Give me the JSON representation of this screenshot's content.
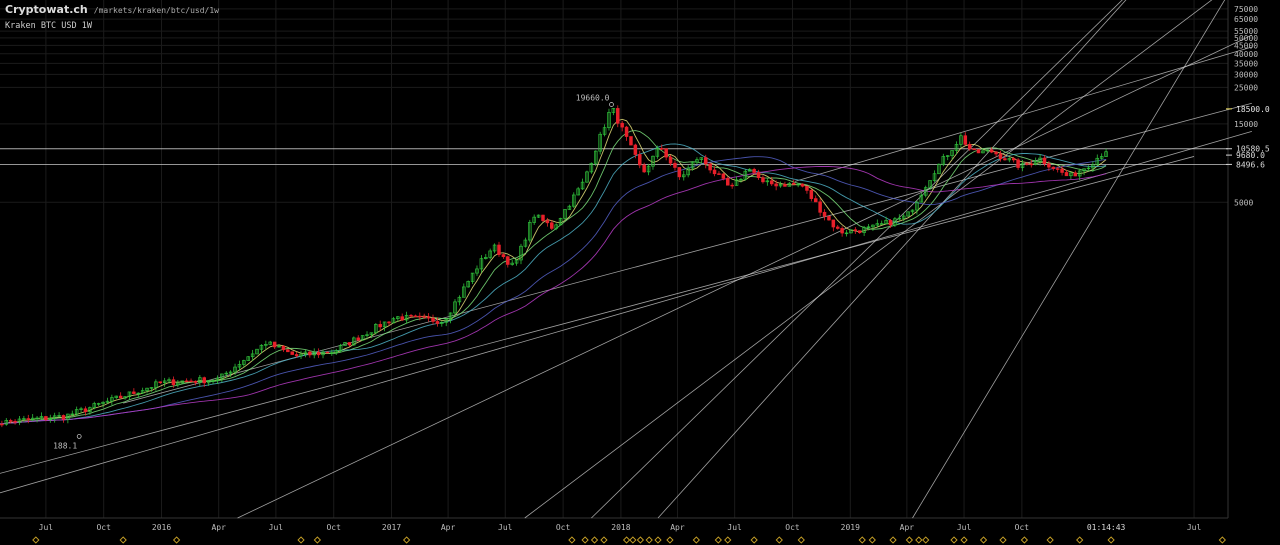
{
  "header": {
    "site": "Cryptowat.ch",
    "path": "/markets/kraken/btc/usd/1w",
    "symbol": "Kraken BTC USD 1W"
  },
  "colors": {
    "background": "#000000",
    "grid": "#1b1b1b",
    "up": "#2fbf3a",
    "down": "#e8202a",
    "trendline": "#d6d6d6",
    "axis_text": "#bdbdbd",
    "highlight_price": "#f0e060",
    "marker": "#c9a227"
  },
  "chart_data": {
    "type": "candlestick",
    "title": "Kraken BTC USD 1W",
    "y_scale": "log",
    "x_tick_labels": [
      "Jul",
      "Oct",
      "2016",
      "Apr",
      "Jul",
      "Oct",
      "2017",
      "Apr",
      "Jul",
      "Oct",
      "2018",
      "Apr",
      "Jul",
      "Oct",
      "2019",
      "Apr",
      "Jul",
      "Oct",
      "Jul"
    ],
    "x_tick_dates": [
      "2015-07-01",
      "2015-10-01",
      "2016-01-01",
      "2016-04-01",
      "2016-07-01",
      "2016-10-01",
      "2017-01-01",
      "2017-04-01",
      "2017-07-01",
      "2017-10-01",
      "2018-01-01",
      "2018-04-01",
      "2018-07-01",
      "2018-10-01",
      "2019-01-01",
      "2019-04-01",
      "2019-07-01",
      "2019-10-01",
      "2020-07-01"
    ],
    "y_tick_labels": [
      75000,
      65000,
      55000,
      50000,
      45000,
      40000,
      35000,
      30000,
      25000,
      15000,
      5000
    ],
    "price_labels": [
      {
        "value": 18500.0,
        "text": "18500.0",
        "highlight": true
      },
      {
        "value": 10580.5,
        "text": "10580.5"
      },
      {
        "value": 9680.0,
        "text": "9680.0"
      },
      {
        "value": 8496.6,
        "text": "8496.6"
      }
    ],
    "horizontal_lines": [
      10580.5,
      8496.6
    ],
    "annotations": [
      {
        "date": "2017-12-17",
        "value": 19660.0,
        "text": "19660.0"
      },
      {
        "date": "2015-08-23",
        "value": 188.1,
        "text": "188.1"
      }
    ],
    "time_label": "01:14:43",
    "anchor_points": [
      {
        "date": "2015-04-01",
        "value": 225
      },
      {
        "date": "2015-08-01",
        "value": 250
      },
      {
        "date": "2015-11-01",
        "value": 330
      },
      {
        "date": "2016-01-01",
        "value": 400
      },
      {
        "date": "2016-04-01",
        "value": 420
      },
      {
        "date": "2016-06-15",
        "value": 700
      },
      {
        "date": "2016-08-01",
        "value": 580
      },
      {
        "date": "2016-10-01",
        "value": 620
      },
      {
        "date": "2016-12-15",
        "value": 900
      },
      {
        "date": "2017-01-08",
        "value": 1000
      },
      {
        "date": "2017-03-25",
        "value": 950
      },
      {
        "date": "2017-05-20",
        "value": 2100
      },
      {
        "date": "2017-06-12",
        "value": 2700
      },
      {
        "date": "2017-07-15",
        "value": 2000
      },
      {
        "date": "2017-08-15",
        "value": 4200
      },
      {
        "date": "2017-09-15",
        "value": 3500
      },
      {
        "date": "2017-11-01",
        "value": 6500
      },
      {
        "date": "2017-12-17",
        "value": 19000
      },
      {
        "date": "2018-02-05",
        "value": 7500
      },
      {
        "date": "2018-03-05",
        "value": 11000
      },
      {
        "date": "2018-04-05",
        "value": 7000
      },
      {
        "date": "2018-05-05",
        "value": 9500
      },
      {
        "date": "2018-06-25",
        "value": 6000
      },
      {
        "date": "2018-07-25",
        "value": 8200
      },
      {
        "date": "2018-08-15",
        "value": 6500
      },
      {
        "date": "2018-10-15",
        "value": 6400
      },
      {
        "date": "2018-11-25",
        "value": 4000
      },
      {
        "date": "2018-12-15",
        "value": 3300
      },
      {
        "date": "2019-02-01",
        "value": 3450
      },
      {
        "date": "2019-04-01",
        "value": 4100
      },
      {
        "date": "2019-05-15",
        "value": 7800
      },
      {
        "date": "2019-06-26",
        "value": 12500
      },
      {
        "date": "2019-07-15",
        "value": 10000
      },
      {
        "date": "2019-08-15",
        "value": 10200
      },
      {
        "date": "2019-09-30",
        "value": 8200
      },
      {
        "date": "2019-10-28",
        "value": 9300
      },
      {
        "date": "2019-12-15",
        "value": 7100
      },
      {
        "date": "2020-01-20",
        "value": 8700
      },
      {
        "date": "2020-02-12",
        "value": 10400
      }
    ],
    "moving_averages": [
      {
        "color": "#e8e27a",
        "period": 5
      },
      {
        "color": "#7be07b",
        "period": 10
      },
      {
        "color": "#4fb3c8",
        "period": 20
      },
      {
        "color": "#5560c8",
        "period": 40
      },
      {
        "color": "#b83cc8",
        "period": 60
      }
    ],
    "trend_lines": [
      {
        "from": {
          "date": "2014-12-01",
          "value": 60
        },
        "to": {
          "date": "2020-10-01",
          "value": 13500
        }
      },
      {
        "from": {
          "date": "2015-03-01",
          "value": 100
        },
        "to": {
          "date": "2020-07-01",
          "value": 9500
        }
      },
      {
        "from": {
          "date": "2015-11-01",
          "value": 300
        },
        "to": {
          "date": "2020-10-01",
          "value": 20000
        }
      },
      {
        "from": {
          "date": "2016-05-01",
          "value": 60
        },
        "to": {
          "date": "2020-10-01",
          "value": 52000
        }
      },
      {
        "from": {
          "date": "2017-08-01",
          "value": 60
        },
        "to": {
          "date": "2020-10-01",
          "value": 130000
        }
      },
      {
        "from": {
          "date": "2017-11-15",
          "value": 60
        },
        "to": {
          "date": "2020-10-01",
          "value": 500000
        }
      },
      {
        "from": {
          "date": "2018-03-01",
          "value": 60
        },
        "to": {
          "date": "2020-10-01",
          "value": 600000
        }
      },
      {
        "from": {
          "date": "2019-04-10",
          "value": 60
        },
        "to": {
          "date": "2020-10-01",
          "value": 160000
        }
      },
      {
        "from": {
          "date": "2018-10-05",
          "value": 6700
        },
        "to": {
          "date": "2020-10-01",
          "value": 44000
        }
      }
    ],
    "marker_dates": [
      "2015-06-15",
      "2015-11-01",
      "2016-01-25",
      "2016-08-10",
      "2016-09-05",
      "2017-01-25",
      "2017-10-15",
      "2017-11-05",
      "2017-11-20",
      "2017-12-05",
      "2018-01-10",
      "2018-01-20",
      "2018-02-01",
      "2018-02-15",
      "2018-03-01",
      "2018-03-20",
      "2018-05-01",
      "2018-06-05",
      "2018-06-20",
      "2018-08-01",
      "2018-09-10",
      "2018-10-15",
      "2019-01-20",
      "2019-02-05",
      "2019-03-10",
      "2019-04-05",
      "2019-04-20",
      "2019-05-01",
      "2019-06-15",
      "2019-07-01",
      "2019-08-01",
      "2019-09-01",
      "2019-10-05",
      "2019-11-15",
      "2020-01-01",
      "2020-02-20",
      "2020-08-15"
    ]
  }
}
